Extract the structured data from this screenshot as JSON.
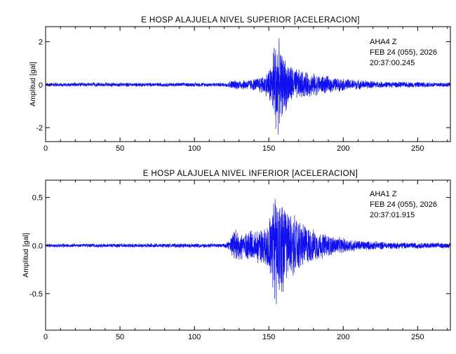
{
  "chart_data": [
    {
      "type": "line",
      "title": "E HOSP ALAJUELA NIVEL SUPERIOR [ACELERACION]",
      "ylabel": "Amplitud [gal]",
      "xlabel": "",
      "xlim": [
        0,
        272
      ],
      "ylim": [
        -2.65,
        2.7
      ],
      "xticks": [
        "0",
        "50",
        "100",
        "150",
        "200",
        "250"
      ],
      "yticks": [
        "2",
        "0",
        "-2"
      ],
      "annotation": [
        "AHA4   Z",
        "FEB 24 (055), 2026",
        "20:37:00.245"
      ],
      "color": "#1010ee",
      "grid": false,
      "series": [
        {
          "envelope": [
            [
              0,
              0.1
            ],
            [
              120,
              0.1
            ],
            [
              125,
              0.22
            ],
            [
              140,
              0.3
            ],
            [
              148,
              0.55
            ],
            [
              152,
              1.2
            ],
            [
              154,
              2.5
            ],
            [
              156,
              2.55
            ],
            [
              158,
              1.7
            ],
            [
              162,
              1.3
            ],
            [
              167,
              0.85
            ],
            [
              175,
              0.65
            ],
            [
              185,
              0.5
            ],
            [
              195,
              0.35
            ],
            [
              210,
              0.25
            ],
            [
              225,
              0.16
            ],
            [
              272,
              0.12
            ]
          ]
        }
      ]
    },
    {
      "type": "line",
      "title": "E HOSP ALAJUELA NIVEL INFERIOR [ACELERACION]",
      "ylabel": "Amplitud [gal]",
      "xlabel": "",
      "xlim": [
        0,
        272
      ],
      "ylim": [
        -0.88,
        0.68
      ],
      "xticks": [
        "0",
        "50",
        "100",
        "150",
        "200",
        "250"
      ],
      "yticks": [
        "0.5",
        "0.0",
        "-0.5"
      ],
      "annotation": [
        "AHA1   Z",
        "FEB 24 (055), 2026",
        "20:37:01.915"
      ],
      "color": "#1010ee",
      "grid": false,
      "series": [
        {
          "envelope": [
            [
              0,
              0.02
            ],
            [
              120,
              0.025
            ],
            [
              124,
              0.06
            ],
            [
              126,
              0.17
            ],
            [
              140,
              0.18
            ],
            [
              148,
              0.25
            ],
            [
              152,
              0.42
            ],
            [
              155,
              0.8
            ],
            [
              157,
              0.62
            ],
            [
              160,
              0.5
            ],
            [
              165,
              0.38
            ],
            [
              172,
              0.28
            ],
            [
              180,
              0.18
            ],
            [
              195,
              0.1
            ],
            [
              210,
              0.06
            ],
            [
              230,
              0.04
            ],
            [
              272,
              0.03
            ]
          ]
        }
      ]
    }
  ]
}
